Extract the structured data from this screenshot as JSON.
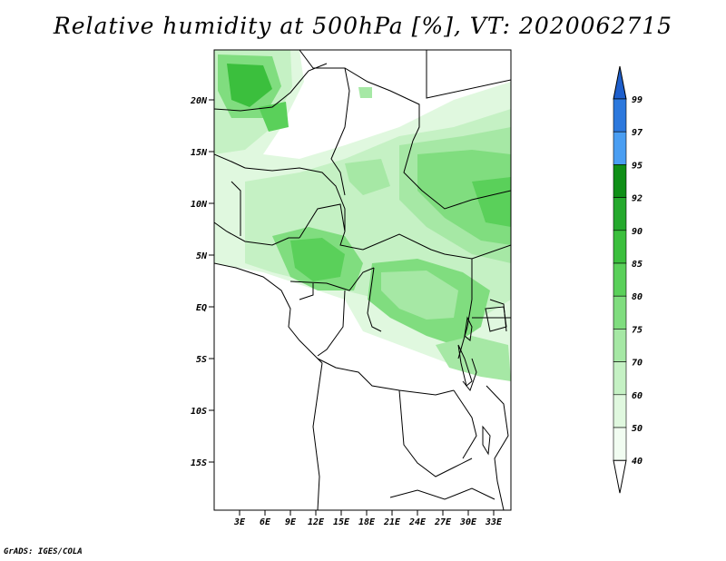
{
  "title": "Relative humidity at 500hPa [%], VT: 2020062715",
  "credit": "GrADS: IGES/COLA",
  "map": {
    "lat_labels": [
      "20N",
      "15N",
      "10N",
      "5N",
      "EQ",
      "5S",
      "10S",
      "15S"
    ],
    "lon_labels": [
      "3E",
      "6E",
      "9E",
      "12E",
      "15E",
      "18E",
      "21E",
      "24E",
      "27E",
      "30E",
      "33E"
    ]
  },
  "colorbar": {
    "labels": [
      "99",
      "97",
      "95",
      "92",
      "90",
      "85",
      "80",
      "75",
      "70",
      "60",
      "50",
      "40"
    ],
    "colors": [
      "#1e5fcc",
      "#2c78dd",
      "#4a9ef2",
      "#0f8f17",
      "#25a92d",
      "#3bbf3d",
      "#5ad05a",
      "#80dd7f",
      "#a6e8a5",
      "#c5f1c4",
      "#e0f8df",
      "#f1fcf1"
    ]
  }
}
